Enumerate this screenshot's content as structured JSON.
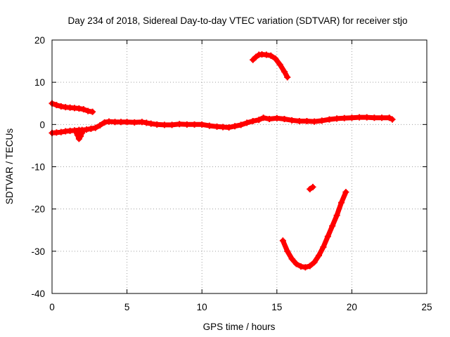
{
  "chart_data": {
    "type": "scatter",
    "title": "Day 234 of 2018, Sidereal Day-to-day VTEC variation (SDTVAR) for receiver stjo",
    "xlabel": "GPS time / hours",
    "ylabel": "SDTVAR / TECUs",
    "xlim": [
      0,
      25
    ],
    "ylim": [
      -40,
      20
    ],
    "xticks": [
      0,
      5,
      10,
      15,
      20,
      25
    ],
    "yticks": [
      -40,
      -30,
      -20,
      -10,
      0,
      10,
      20
    ],
    "grid": true,
    "marker": "plus",
    "color": "#ff0000",
    "series": [
      {
        "name": "main",
        "x": [
          0.0,
          0.3,
          0.6,
          0.9,
          1.2,
          1.5,
          1.8,
          2.0,
          2.3,
          2.6,
          2.9,
          3.2,
          3.5,
          3.8,
          4.2,
          4.6,
          5.0,
          5.5,
          6.0,
          6.3,
          6.6,
          7.0,
          7.5,
          8.0,
          8.5,
          9.0,
          9.5,
          10.0,
          10.5,
          11.0,
          11.4,
          11.8,
          12.2,
          12.6,
          13.0,
          13.4,
          13.8,
          14.1,
          14.5,
          15.0,
          15.5,
          16.0,
          16.5,
          17.0,
          17.5,
          18.0,
          18.5,
          19.0,
          19.5,
          20.0,
          20.5,
          21.0,
          21.5,
          22.0,
          22.5,
          22.7
        ],
        "y": [
          -2.0,
          -1.9,
          -1.8,
          -1.6,
          -1.5,
          -1.4,
          -1.3,
          -1.3,
          -1.2,
          -1.0,
          -0.8,
          -0.2,
          0.5,
          0.7,
          0.6,
          0.6,
          0.6,
          0.5,
          0.6,
          0.4,
          0.2,
          0.0,
          -0.1,
          -0.1,
          0.1,
          0.0,
          0.0,
          0.0,
          -0.3,
          -0.5,
          -0.6,
          -0.7,
          -0.4,
          -0.1,
          0.4,
          0.8,
          1.1,
          1.6,
          1.3,
          1.5,
          1.3,
          1.0,
          0.8,
          0.8,
          0.7,
          0.9,
          1.2,
          1.4,
          1.5,
          1.6,
          1.7,
          1.7,
          1.6,
          1.6,
          1.6,
          1.2
        ]
      },
      {
        "name": "upper-start",
        "x": [
          0.0,
          0.3,
          0.6,
          0.9,
          1.2,
          1.5,
          1.8,
          2.1,
          2.4,
          2.7
        ],
        "y": [
          5.0,
          4.6,
          4.3,
          4.1,
          4.0,
          3.9,
          3.8,
          3.6,
          3.2,
          3.0
        ]
      },
      {
        "name": "dip-near-2h",
        "x": [
          1.6,
          1.7,
          1.8,
          1.9,
          2.0
        ],
        "y": [
          -1.8,
          -2.5,
          -3.4,
          -2.8,
          -2.0
        ]
      },
      {
        "name": "arc-high",
        "x": [
          13.4,
          13.6,
          13.8,
          14.0,
          14.3,
          14.6,
          14.9,
          15.2,
          15.5,
          15.7
        ],
        "y": [
          15.3,
          16.0,
          16.5,
          16.6,
          16.5,
          16.3,
          15.6,
          14.2,
          12.5,
          11.2
        ]
      },
      {
        "name": "isolated",
        "x": [
          17.2,
          17.4
        ],
        "y": [
          -15.3,
          -14.8
        ]
      },
      {
        "name": "arc-low",
        "x": [
          15.4,
          15.7,
          16.0,
          16.3,
          16.6,
          16.9,
          17.2,
          17.5,
          17.8,
          18.1,
          18.4,
          18.7,
          19.0,
          19.3,
          19.6
        ],
        "y": [
          -27.5,
          -30.0,
          -31.8,
          -33.0,
          -33.6,
          -33.8,
          -33.5,
          -32.6,
          -31.0,
          -29.0,
          -26.5,
          -24.0,
          -21.5,
          -18.5,
          -16.0
        ]
      }
    ]
  }
}
